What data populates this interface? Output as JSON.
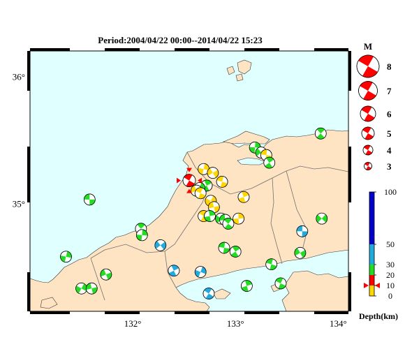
{
  "title": "Period:2004/04/22 00:00--2014/04/22 15:23",
  "lat_labels": [
    {
      "text": "36°",
      "lat": 36.0
    },
    {
      "text": "35°",
      "lat": 35.0
    }
  ],
  "lon_labels": [
    {
      "text": "132°",
      "lon": 132.0
    },
    {
      "text": "133°",
      "lon": 133.0
    },
    {
      "text": "134°",
      "lon": 134.0
    }
  ],
  "magnitude_legend": {
    "header": "M",
    "items": [
      "8",
      "7",
      "6",
      "5",
      "4",
      "3"
    ]
  },
  "depth_legend": {
    "title": "Depth(km)",
    "ticks": [
      "100",
      "50",
      "30",
      "20",
      "10",
      "0"
    ],
    "colors": {
      "0-10": "#ffd700",
      "10-20": "#ff0000",
      "20-30": "#22dd22",
      "30-50": "#22aadd",
      "50-100": "#0000cc"
    }
  },
  "colors": {
    "sea": "#e0ffff",
    "land": "#ffe4c4",
    "frame": "#000000",
    "boundary": "#707070",
    "mainshock": "#ff0000"
  },
  "mainshock": {
    "lon": 132.55,
    "lat": 35.18,
    "depth_class": "10-20"
  },
  "events": [
    {
      "lon": 131.58,
      "lat": 35.03,
      "c": "green"
    },
    {
      "lon": 133.83,
      "lat": 35.55,
      "c": "green"
    },
    {
      "lon": 133.19,
      "lat": 35.44,
      "c": "green"
    },
    {
      "lon": 133.25,
      "lat": 35.4,
      "c": "green"
    },
    {
      "lon": 133.3,
      "lat": 35.38,
      "c": "yellow"
    },
    {
      "lon": 133.33,
      "lat": 35.32,
      "c": "green"
    },
    {
      "lon": 132.69,
      "lat": 35.27,
      "c": "yellow"
    },
    {
      "lon": 132.78,
      "lat": 35.24,
      "c": "yellow"
    },
    {
      "lon": 132.87,
      "lat": 35.17,
      "c": "yellow"
    },
    {
      "lon": 132.72,
      "lat": 35.14,
      "c": "green"
    },
    {
      "lon": 132.65,
      "lat": 35.12,
      "c": "green"
    },
    {
      "lon": 132.62,
      "lat": 35.1,
      "c": "yellow"
    },
    {
      "lon": 132.66,
      "lat": 35.08,
      "c": "yellow"
    },
    {
      "lon": 133.08,
      "lat": 35.05,
      "c": "yellow"
    },
    {
      "lon": 132.76,
      "lat": 35.02,
      "c": "yellow"
    },
    {
      "lon": 132.79,
      "lat": 34.97,
      "c": "yellow"
    },
    {
      "lon": 132.69,
      "lat": 34.9,
      "c": "yellow"
    },
    {
      "lon": 132.75,
      "lat": 34.9,
      "c": "green"
    },
    {
      "lon": 132.86,
      "lat": 34.88,
      "c": "green"
    },
    {
      "lon": 132.9,
      "lat": 34.87,
      "c": "green"
    },
    {
      "lon": 132.93,
      "lat": 34.84,
      "c": "green"
    },
    {
      "lon": 133.03,
      "lat": 34.88,
      "c": "yellow"
    },
    {
      "lon": 133.84,
      "lat": 34.88,
      "c": "green"
    },
    {
      "lon": 133.65,
      "lat": 34.78,
      "c": "cyan"
    },
    {
      "lon": 132.08,
      "lat": 34.8,
      "c": "green"
    },
    {
      "lon": 132.09,
      "lat": 34.75,
      "c": "green"
    },
    {
      "lon": 132.27,
      "lat": 34.67,
      "c": "cyan"
    },
    {
      "lon": 132.89,
      "lat": 34.65,
      "c": "green"
    },
    {
      "lon": 133.0,
      "lat": 34.62,
      "c": "green"
    },
    {
      "lon": 131.35,
      "lat": 34.58,
      "c": "green"
    },
    {
      "lon": 133.63,
      "lat": 34.61,
      "c": "green"
    },
    {
      "lon": 133.35,
      "lat": 34.52,
      "c": "green"
    },
    {
      "lon": 132.4,
      "lat": 34.47,
      "c": "cyan"
    },
    {
      "lon": 132.66,
      "lat": 34.46,
      "c": "cyan"
    },
    {
      "lon": 131.74,
      "lat": 34.44,
      "c": "green"
    },
    {
      "lon": 133.44,
      "lat": 34.37,
      "c": "green"
    },
    {
      "lon": 133.11,
      "lat": 34.35,
      "c": "green"
    },
    {
      "lon": 131.5,
      "lat": 34.33,
      "c": "green"
    },
    {
      "lon": 131.6,
      "lat": 34.33,
      "c": "green"
    },
    {
      "lon": 132.74,
      "lat": 34.29,
      "c": "cyan"
    }
  ]
}
